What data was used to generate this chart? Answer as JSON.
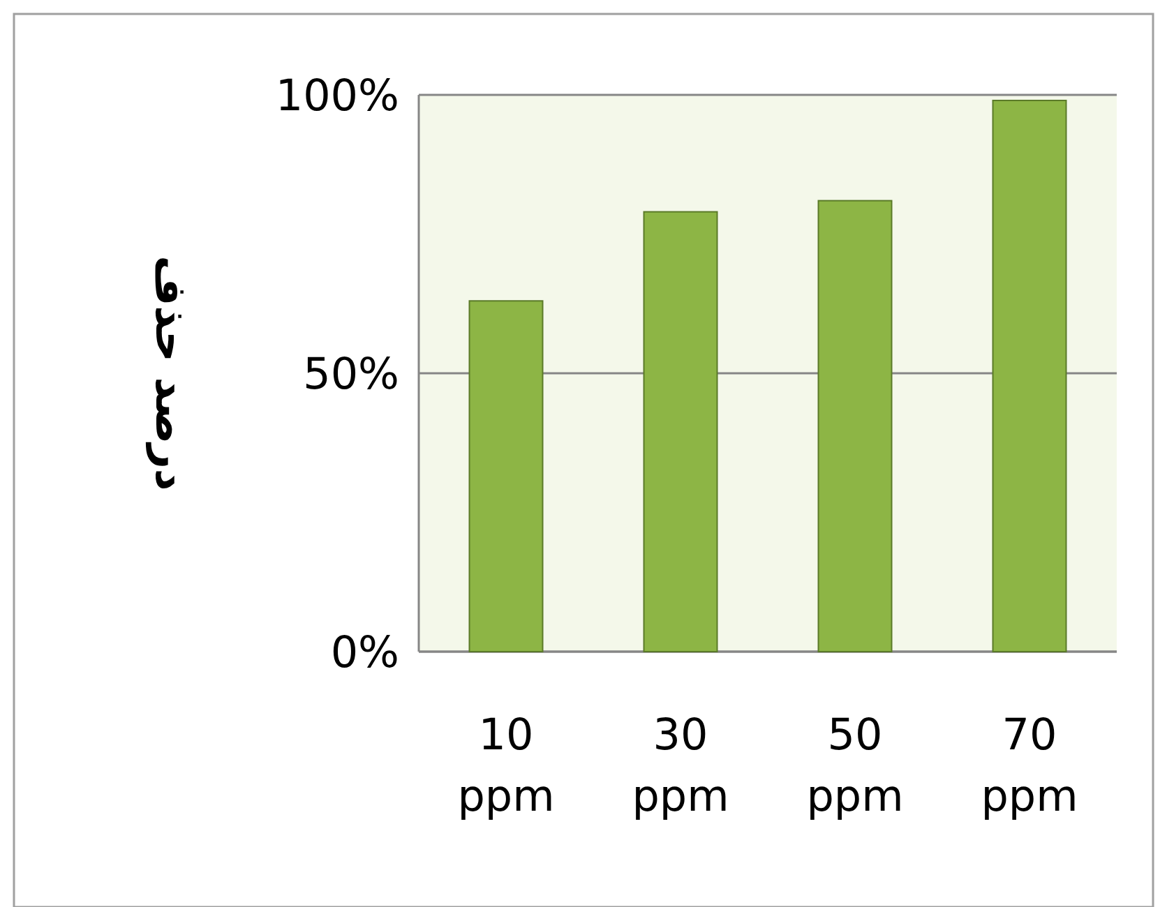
{
  "chart_data": {
    "type": "bar",
    "ylabel": "درصد حذف",
    "categories": [
      "10 ppm",
      "30 ppm",
      "50 ppm",
      "70 ppm"
    ],
    "values": [
      63,
      79,
      81,
      99
    ],
    "color": "#8db545",
    "ylim": [
      0,
      100
    ],
    "yticks": [
      {
        "value": 0,
        "label": "0%"
      },
      {
        "value": 50,
        "label": "50%"
      },
      {
        "value": 100,
        "label": "100%"
      }
    ],
    "grid": "y"
  }
}
